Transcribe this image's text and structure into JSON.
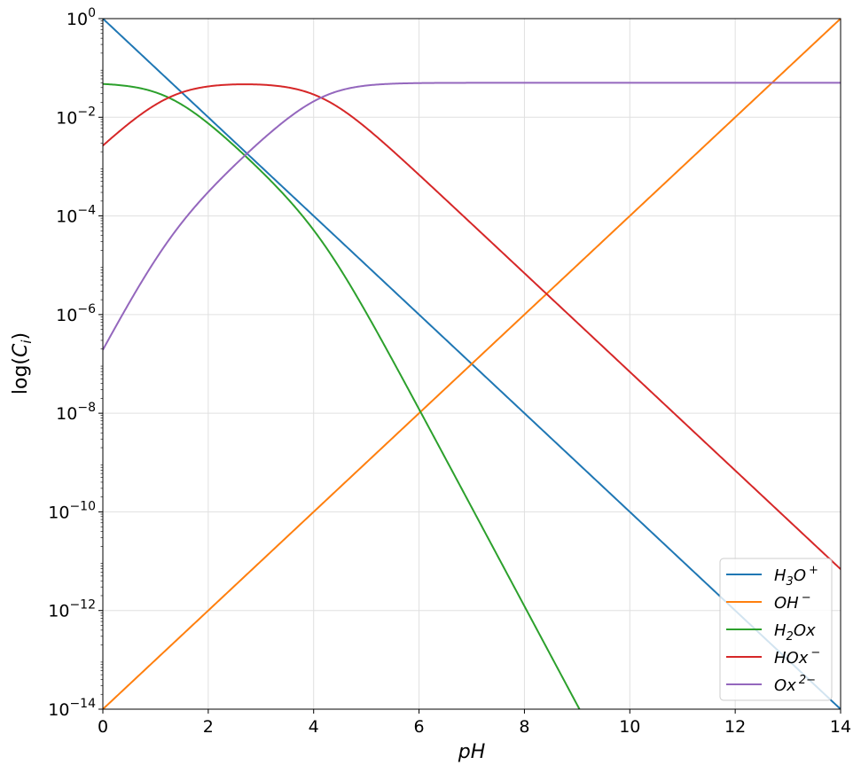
{
  "chart_data": {
    "type": "line",
    "title": "",
    "xlabel": "pH",
    "ylabel": "log(C_i)",
    "xlim": [
      0,
      14
    ],
    "ylim_log10": [
      -14,
      0
    ],
    "yscale": "log",
    "grid": true,
    "legend_position": "lower-right",
    "x_ticks": [
      "0",
      "2",
      "4",
      "6",
      "8",
      "10",
      "12",
      "14"
    ],
    "y_ticks": [
      {
        "base": "10",
        "exp": "0"
      },
      {
        "base": "10",
        "exp": "−2"
      },
      {
        "base": "10",
        "exp": "−4"
      },
      {
        "base": "10",
        "exp": "−6"
      },
      {
        "base": "10",
        "exp": "−8"
      },
      {
        "base": "10",
        "exp": "−10"
      },
      {
        "base": "10",
        "exp": "−12"
      },
      {
        "base": "10",
        "exp": "−14"
      }
    ],
    "model": {
      "total_concentration": 0.05,
      "pKa1": 1.25,
      "pKa2": 4.14,
      "pKw": 14
    },
    "series": [
      {
        "name": "H3O+",
        "kind": "h3o",
        "color": "#1f77b4",
        "label": [
          [
            "H",
            ""
          ],
          [
            "3",
            "sub"
          ],
          [
            "O",
            ""
          ],
          [
            "+",
            "sup"
          ]
        ]
      },
      {
        "name": "OH-",
        "kind": "oh",
        "color": "#ff7f0e",
        "label": [
          [
            "OH",
            ""
          ],
          [
            "−",
            "sup"
          ]
        ]
      },
      {
        "name": "H2Ox",
        "kind": "h2a",
        "color": "#2ca02c",
        "label": [
          [
            "H",
            ""
          ],
          [
            "2",
            "sub"
          ],
          [
            "Ox",
            ""
          ]
        ]
      },
      {
        "name": "HOx-",
        "kind": "ha",
        "color": "#d62728",
        "label": [
          [
            "HOx",
            ""
          ],
          [
            "−",
            "sup"
          ]
        ]
      },
      {
        "name": "Ox2-",
        "kind": "a",
        "color": "#9467bd",
        "label": [
          [
            "Ox",
            ""
          ],
          [
            "2−",
            "sup"
          ]
        ]
      }
    ]
  }
}
